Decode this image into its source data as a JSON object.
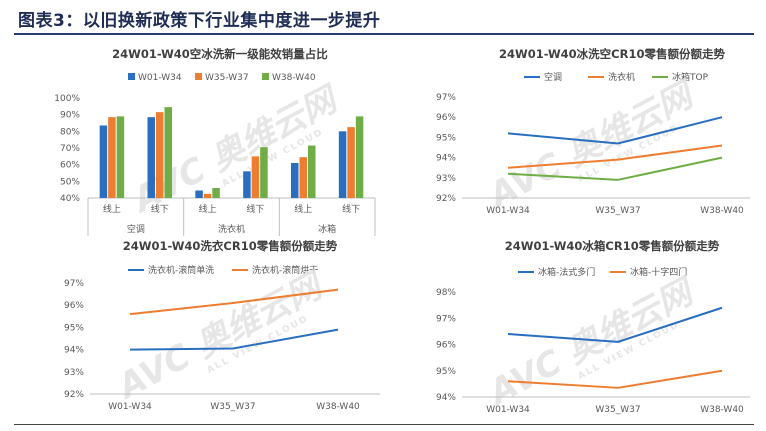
{
  "page": {
    "title": "图表3：以旧换新政策下行业集中度进一步提升"
  },
  "colors": {
    "blue": "#2a6ebf",
    "orange": "#ed7d31",
    "green": "#70ad47",
    "axis": "#bfbfbf",
    "title_rule": "#2a3a78",
    "watermark": "#e2e2e2"
  },
  "watermark": {
    "text": "AVC 奥维云网",
    "subtext": "ALL VIEW CLOUD"
  },
  "chart_data": [
    {
      "id": "c1",
      "type": "bar",
      "title": "24W01-W40空冰洗新一级能效销量占比",
      "legend": {
        "position": "top",
        "entries": [
          "W01-W34",
          "W35-W37",
          "W38-W40"
        ]
      },
      "categories": [
        "线上",
        "线下",
        "线上",
        "线下",
        "线上",
        "线下"
      ],
      "groups": [
        {
          "label": "空调",
          "span": [
            0,
            1
          ]
        },
        {
          "label": "洗衣机",
          "span": [
            2,
            3
          ]
        },
        {
          "label": "冰箱",
          "span": [
            4,
            5
          ]
        }
      ],
      "series": [
        {
          "name": "W01-W34",
          "color": "#2a6ebf",
          "values": [
            83.5,
            88.5,
            44.5,
            56,
            61,
            80
          ]
        },
        {
          "name": "W35-W37",
          "color": "#ed7d31",
          "values": [
            88.5,
            91.5,
            42.5,
            65,
            64.5,
            82.5
          ]
        },
        {
          "name": "W38-W40",
          "color": "#70ad47",
          "values": [
            89,
            94.5,
            46,
            70.5,
            71.5,
            89
          ]
        }
      ],
      "ylim": [
        40,
        100
      ],
      "yticks": [
        "40%",
        "50%",
        "60%",
        "70%",
        "80%",
        "90%",
        "100%"
      ],
      "ytick_values": [
        40,
        50,
        60,
        70,
        80,
        90,
        100
      ],
      "grid": false
    },
    {
      "id": "c2",
      "type": "line",
      "title": "24W01-W40冰洗空CR10零售额份额走势",
      "legend": {
        "position": "top",
        "entries": [
          "空调",
          "洗衣机",
          "冰箱TOP"
        ]
      },
      "x": [
        "W01-W34",
        "W35_W37",
        "W38-W40"
      ],
      "series": [
        {
          "name": "空调",
          "color": "#2a6ebf",
          "values": [
            95.2,
            94.7,
            96.0
          ]
        },
        {
          "name": "洗衣机",
          "color": "#ed7d31",
          "values": [
            93.5,
            93.9,
            94.6
          ]
        },
        {
          "name": "冰箱TOP",
          "color": "#70ad47",
          "values": [
            93.2,
            92.9,
            94.0
          ]
        }
      ],
      "ylim": [
        92,
        97
      ],
      "yticks": [
        "92%",
        "93%",
        "94%",
        "95%",
        "96%",
        "97%"
      ],
      "ytick_values": [
        92,
        93,
        94,
        95,
        96,
        97
      ],
      "grid": false
    },
    {
      "id": "c3",
      "type": "line",
      "title": "24W01-W40洗衣CR10零售额份额走势",
      "legend": {
        "position": "top",
        "entries": [
          "洗衣机-滚筒单洗",
          "洗衣机-滚筒烘干"
        ]
      },
      "x": [
        "W01-W34",
        "W35_W37",
        "W38-W40"
      ],
      "series": [
        {
          "name": "洗衣机-滚筒单洗",
          "color": "#2a6ebf",
          "values": [
            94.0,
            94.05,
            94.9
          ]
        },
        {
          "name": "洗衣机-滚筒烘干",
          "color": "#ed7d31",
          "values": [
            95.6,
            96.1,
            96.7
          ]
        }
      ],
      "ylim": [
        92,
        97
      ],
      "yticks": [
        "92%",
        "93%",
        "94%",
        "95%",
        "96%",
        "97%"
      ],
      "ytick_values": [
        92,
        93,
        94,
        95,
        96,
        97
      ],
      "grid": false
    },
    {
      "id": "c4",
      "type": "line",
      "title": "24W01-W40冰箱CR10零售额份额走势",
      "legend": {
        "position": "top",
        "entries": [
          "冰箱-法式多门",
          "冰箱-十字四门"
        ]
      },
      "x": [
        "W01-W34",
        "W35_W37",
        "W38-W40"
      ],
      "series": [
        {
          "name": "冰箱-法式多门",
          "color": "#2a6ebf",
          "values": [
            96.4,
            96.1,
            97.4
          ]
        },
        {
          "name": "冰箱-十字四门",
          "color": "#ed7d31",
          "values": [
            94.6,
            94.35,
            95.0
          ]
        }
      ],
      "ylim": [
        94,
        98
      ],
      "yticks": [
        "94%",
        "95%",
        "96%",
        "97%",
        "98%"
      ],
      "ytick_values": [
        94,
        95,
        96,
        97,
        98
      ],
      "grid": false
    }
  ]
}
